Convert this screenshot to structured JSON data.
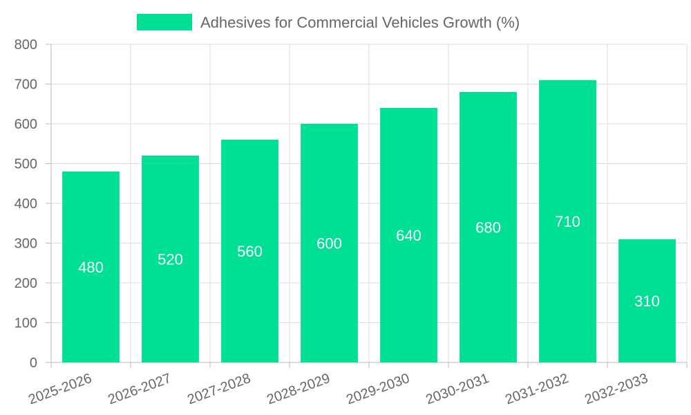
{
  "chart_data": {
    "type": "bar",
    "title": "",
    "xlabel": "",
    "ylabel": "",
    "categories": [
      "2025-2026",
      "2026-2027",
      "2027-2028",
      "2028-2029",
      "2029-2030",
      "2030-2031",
      "2031-2032",
      "2032-2033"
    ],
    "series": [
      {
        "name": "Adhesives for Commercial Vehicles Growth (%)",
        "values": [
          480,
          520,
          560,
          600,
          640,
          680,
          710,
          310
        ],
        "color": "#00e093"
      }
    ],
    "ylim": [
      0,
      800
    ],
    "yticks": [
      0,
      100,
      200,
      300,
      400,
      500,
      600,
      700,
      800
    ],
    "grid": true,
    "legend_position": "top-center",
    "data_labels": true
  }
}
